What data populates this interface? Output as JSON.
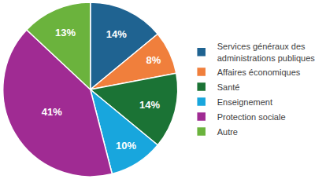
{
  "chart_data": {
    "type": "pie",
    "categories": [
      "Services généraux des administrations publiques",
      "Affaires économiques",
      "Santé",
      "Enseignement",
      "Protection sociale",
      "Autre"
    ],
    "values": [
      14,
      8,
      14,
      10,
      41,
      13
    ],
    "value_labels": [
      "14%",
      "8%",
      "14%",
      "10%",
      "41%",
      "13%"
    ],
    "colors": [
      "#1f6391",
      "#f07f3c",
      "#1b7335",
      "#18a6dd",
      "#a02b93",
      "#6bb33d"
    ],
    "data_labels": true,
    "legend": "right"
  }
}
